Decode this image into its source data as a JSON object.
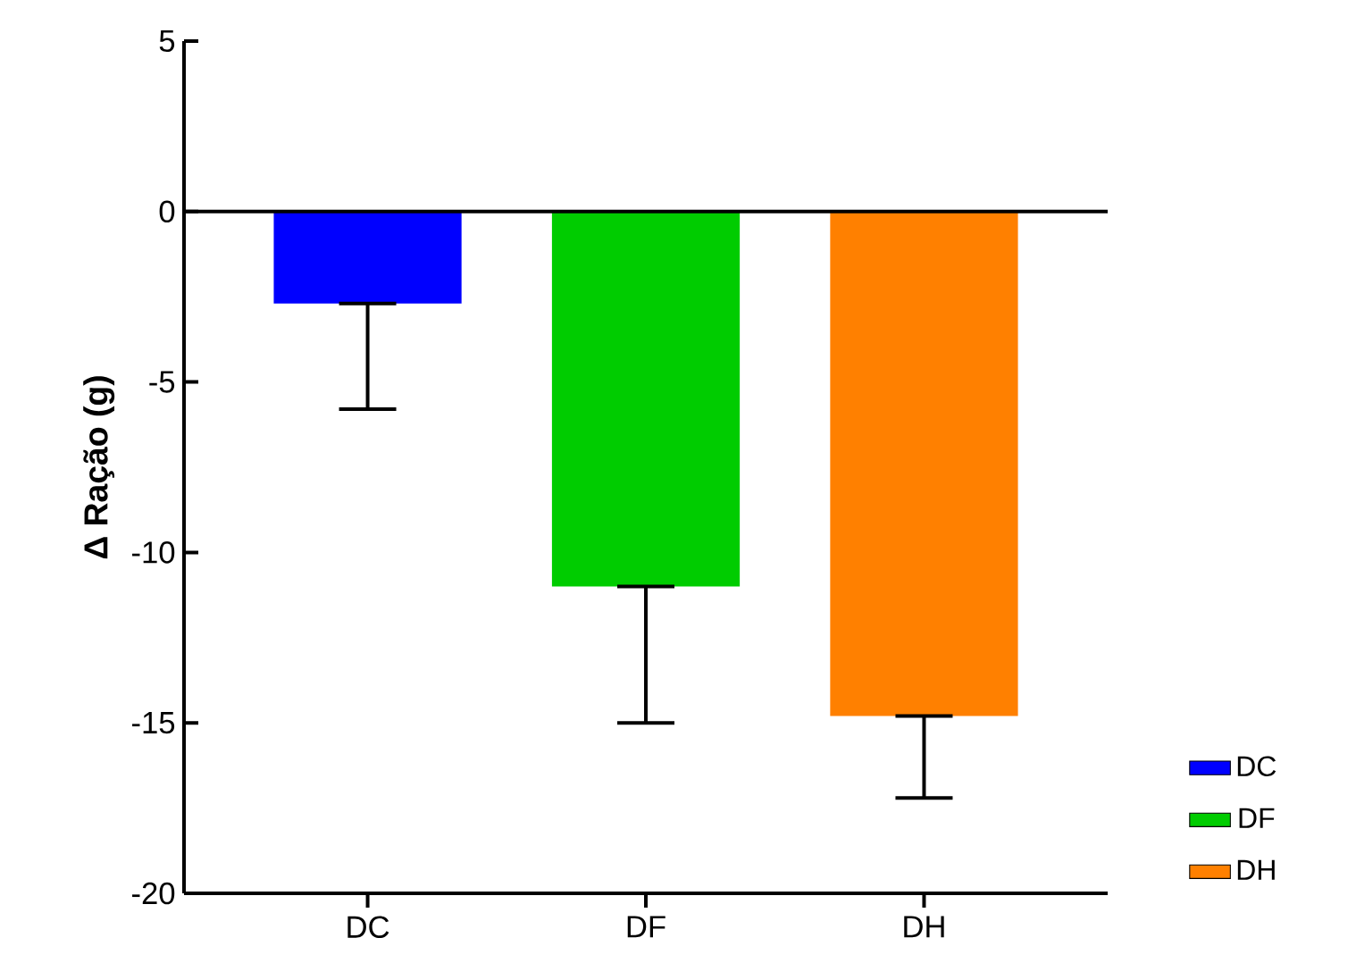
{
  "chart_data": {
    "type": "bar",
    "ylabel": "**Δ Ração (g)**",
    "categories": [
      "DC",
      "DF",
      "DH"
    ],
    "series": [
      {
        "name": "DC",
        "color": "#0000ff",
        "values": [
          -2.7,
          null,
          null
        ],
        "errors": [
          [
            -5.8,
            -2.7
          ],
          null,
          null
        ]
      },
      {
        "name": "DF",
        "color": "#00cc00",
        "values": [
          null,
          -11.0,
          null
        ],
        "errors": [
          null,
          [
            -15.0,
            -11.0
          ],
          null
        ]
      },
      {
        "name": "DH",
        "color": "#ff8000",
        "values": [
          null,
          null,
          -14.8
        ],
        "errors": [
          null,
          null,
          [
            -17.2,
            -14.8
          ]
        ]
      }
    ],
    "ylim": [
      -20,
      5
    ],
    "yticks": [
      5,
      0,
      -5,
      -10,
      -15,
      -20
    ],
    "ref_lines": [
      {
        "axis": "y",
        "value": 0
      }
    ],
    "legend": "bottom right",
    "grid": false
  }
}
